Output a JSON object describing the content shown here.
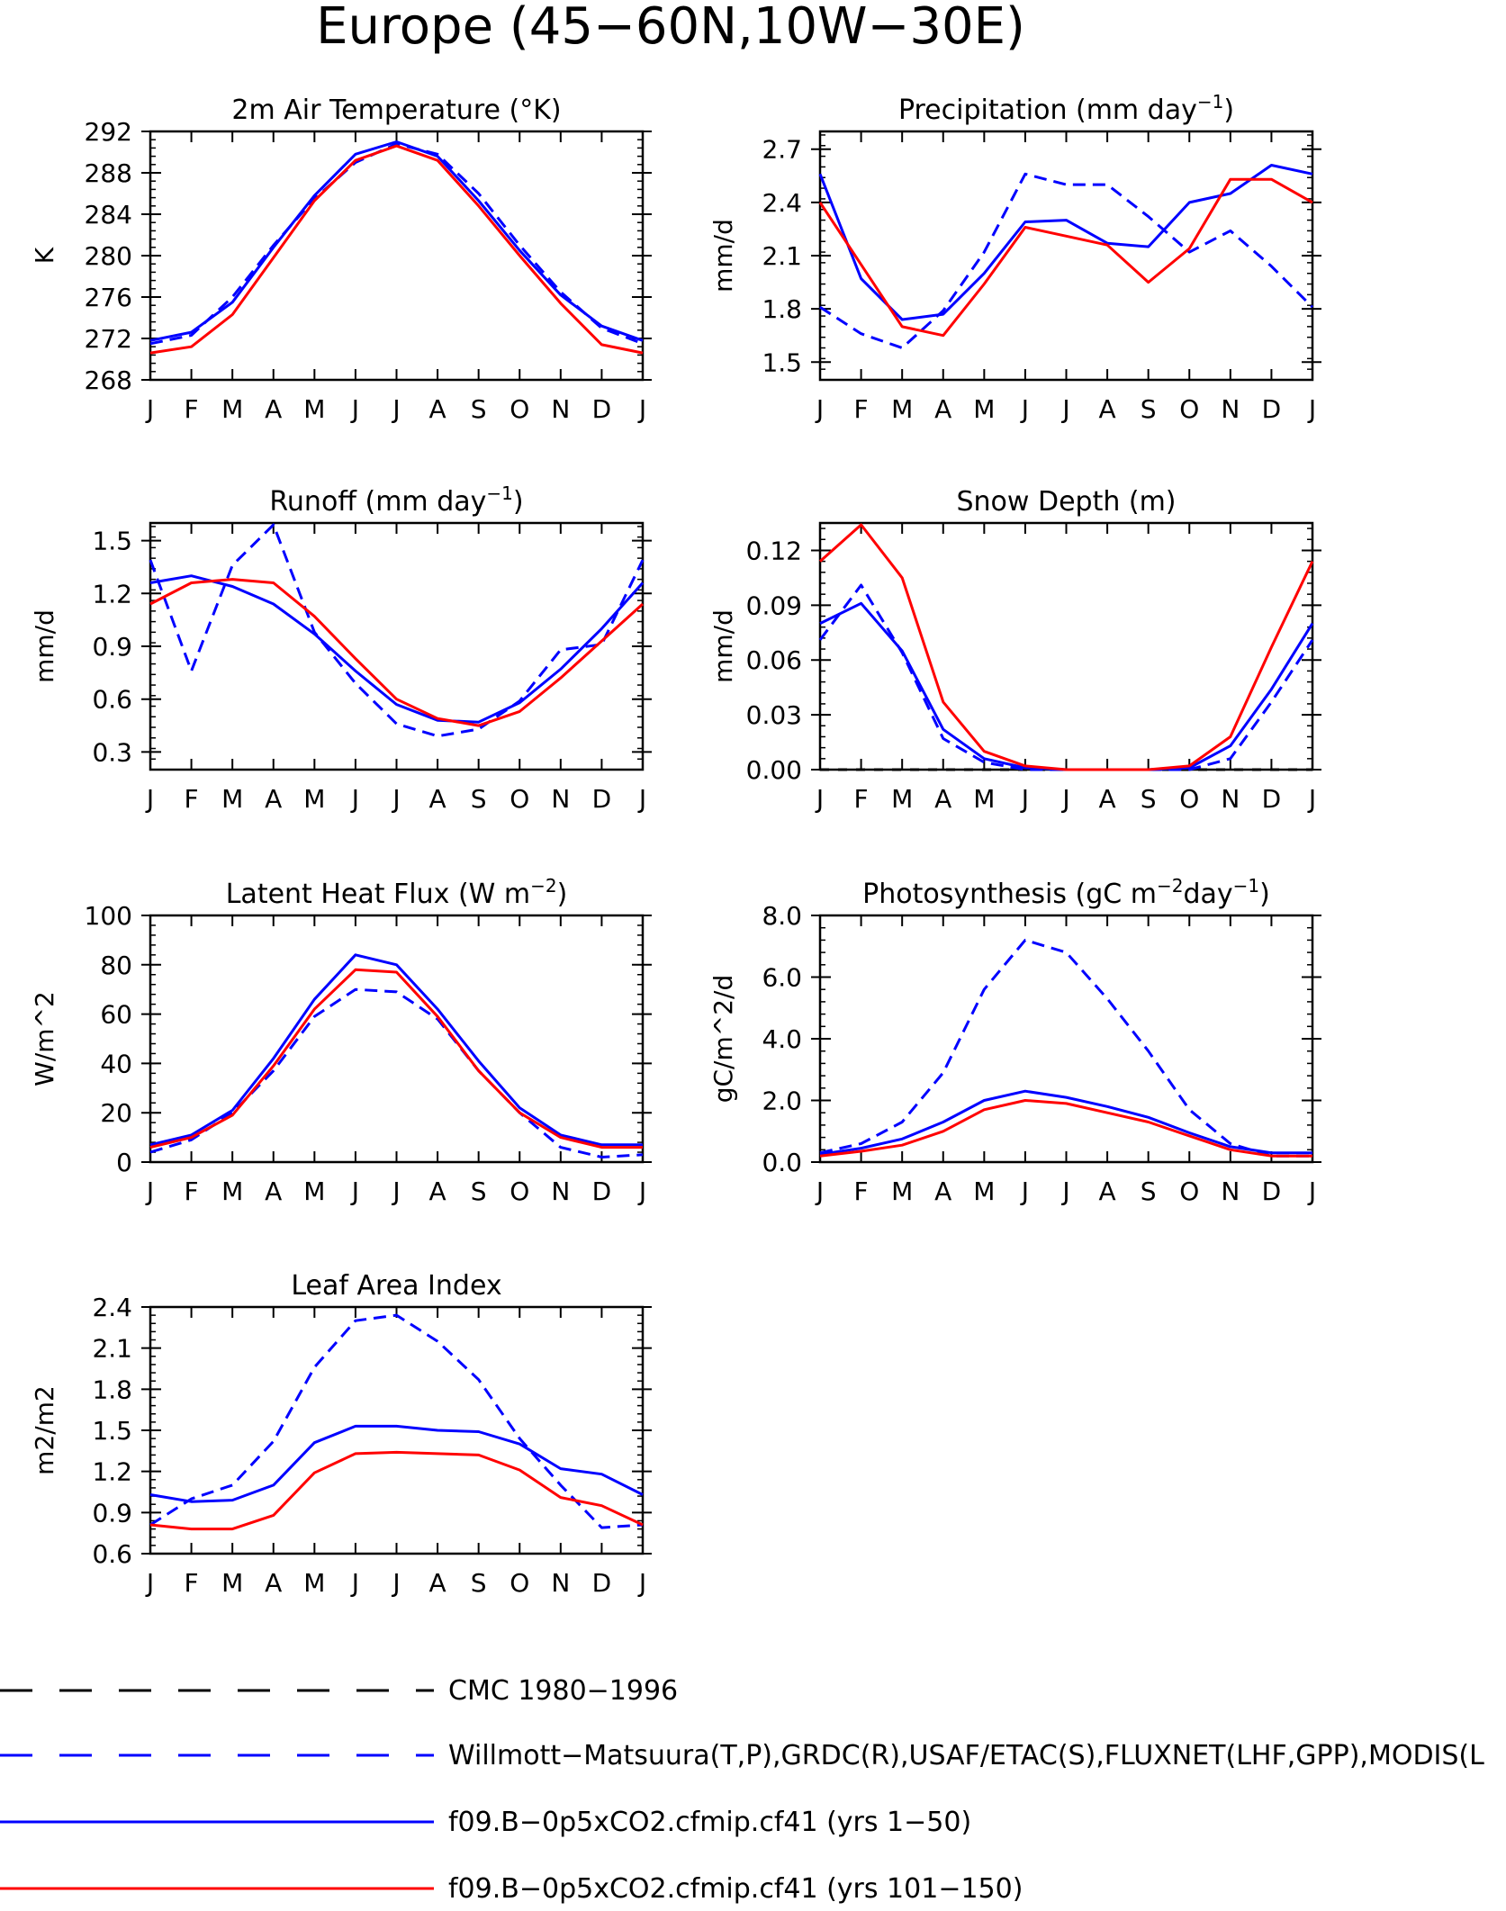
{
  "page": {
    "title": "Europe (45−60N,10W−30E)"
  },
  "months": [
    "J",
    "F",
    "M",
    "A",
    "M",
    "J",
    "J",
    "A",
    "S",
    "O",
    "N",
    "D",
    "J"
  ],
  "chart_data": [
    {
      "type": "line",
      "title_parts": [
        "2m Air Temperature (°K)"
      ],
      "ylabel": "K",
      "ylim": [
        268,
        292
      ],
      "yticks": [
        268,
        272,
        276,
        280,
        284,
        288,
        292
      ],
      "ytick_labels": [
        "268",
        "272",
        "276",
        "280",
        "284",
        "288",
        "292"
      ],
      "x": [
        "J",
        "F",
        "M",
        "A",
        "M",
        "J",
        "J",
        "A",
        "S",
        "O",
        "N",
        "D",
        "J"
      ],
      "series": [
        {
          "key": "obs",
          "values": [
            271.5,
            272.3,
            276.0,
            281.0,
            285.5,
            289.0,
            290.8,
            289.8,
            286.0,
            281.0,
            276.5,
            273.0,
            271.5
          ]
        },
        {
          "key": "model1",
          "values": [
            271.8,
            272.6,
            275.5,
            280.8,
            285.8,
            289.8,
            291.0,
            289.6,
            285.3,
            280.5,
            276.2,
            273.2,
            271.8
          ]
        },
        {
          "key": "model2",
          "values": [
            270.6,
            271.2,
            274.3,
            279.8,
            285.3,
            289.2,
            290.6,
            289.2,
            284.8,
            280.0,
            275.4,
            271.4,
            270.6
          ]
        }
      ]
    },
    {
      "type": "line",
      "title_parts": [
        "Precipitation (mm day",
        "−1",
        ")"
      ],
      "ylabel": "mm/d",
      "ylim": [
        1.4,
        2.8
      ],
      "yticks": [
        1.5,
        1.8,
        2.1,
        2.4,
        2.7
      ],
      "ytick_labels": [
        "1.5",
        "1.8",
        "2.1",
        "2.4",
        "2.7"
      ],
      "x": [
        "J",
        "F",
        "M",
        "A",
        "M",
        "J",
        "J",
        "A",
        "S",
        "O",
        "N",
        "D",
        "J"
      ],
      "series": [
        {
          "key": "obs",
          "values": [
            1.81,
            1.66,
            1.58,
            1.79,
            2.12,
            2.56,
            2.5,
            2.5,
            2.32,
            2.12,
            2.24,
            2.04,
            1.81
          ]
        },
        {
          "key": "model1",
          "values": [
            2.56,
            1.97,
            1.74,
            1.77,
            2.0,
            2.29,
            2.3,
            2.17,
            2.15,
            2.4,
            2.45,
            2.61,
            2.56
          ]
        },
        {
          "key": "model2",
          "values": [
            2.4,
            2.05,
            1.7,
            1.65,
            1.94,
            2.26,
            2.21,
            2.16,
            1.95,
            2.14,
            2.53,
            2.53,
            2.4
          ]
        }
      ]
    },
    {
      "type": "line",
      "title_parts": [
        "Runoff (mm day",
        "−1",
        ")"
      ],
      "ylabel": "mm/d",
      "ylim": [
        0.2,
        1.6
      ],
      "yticks": [
        0.3,
        0.6,
        0.9,
        1.2,
        1.5
      ],
      "ytick_labels": [
        "0.3",
        "0.6",
        "0.9",
        "1.2",
        "1.5"
      ],
      "x": [
        "J",
        "F",
        "M",
        "A",
        "M",
        "J",
        "J",
        "A",
        "S",
        "O",
        "N",
        "D",
        "J"
      ],
      "series": [
        {
          "key": "obs",
          "values": [
            1.39,
            0.76,
            1.36,
            1.59,
            0.98,
            0.69,
            0.46,
            0.39,
            0.43,
            0.59,
            0.88,
            0.91,
            1.39
          ]
        },
        {
          "key": "model1",
          "values": [
            1.26,
            1.3,
            1.24,
            1.14,
            0.97,
            0.76,
            0.57,
            0.48,
            0.47,
            0.58,
            0.77,
            1.0,
            1.26
          ]
        },
        {
          "key": "model2",
          "values": [
            1.14,
            1.26,
            1.28,
            1.26,
            1.07,
            0.83,
            0.6,
            0.49,
            0.45,
            0.53,
            0.72,
            0.93,
            1.14
          ]
        }
      ]
    },
    {
      "type": "line",
      "title_parts": [
        "Snow Depth (m)"
      ],
      "ylabel": "mm/d",
      "ylim": [
        0,
        0.135
      ],
      "yticks": [
        0,
        0.03,
        0.06,
        0.09,
        0.12
      ],
      "ytick_labels": [
        "0.00",
        "0.03",
        "0.06",
        "0.09",
        "0.12"
      ],
      "x": [
        "J",
        "F",
        "M",
        "A",
        "M",
        "J",
        "J",
        "A",
        "S",
        "O",
        "N",
        "D",
        "J"
      ],
      "series": [
        {
          "key": "cmc",
          "values": [
            0,
            0,
            0,
            0,
            0,
            0,
            0,
            0,
            0,
            0,
            0,
            0,
            0
          ]
        },
        {
          "key": "obs",
          "values": [
            0.071,
            0.101,
            0.064,
            0.017,
            0.004,
            0.0,
            0.0,
            0.0,
            0.0,
            0.0,
            0.006,
            0.037,
            0.071
          ]
        },
        {
          "key": "model1",
          "values": [
            0.08,
            0.091,
            0.065,
            0.022,
            0.006,
            0.001,
            0.0,
            0.0,
            0.0,
            0.001,
            0.013,
            0.044,
            0.08
          ]
        },
        {
          "key": "model2",
          "values": [
            0.114,
            0.134,
            0.105,
            0.037,
            0.01,
            0.002,
            0.0,
            0.0,
            0.0,
            0.002,
            0.018,
            0.067,
            0.114
          ]
        }
      ]
    },
    {
      "type": "line",
      "title_parts": [
        "Latent Heat Flux (W m",
        "−2",
        ")"
      ],
      "ylabel": "W/m^2",
      "ylim": [
        0,
        100
      ],
      "yticks": [
        0,
        20,
        40,
        60,
        80,
        100
      ],
      "ytick_labels": [
        "0",
        "20",
        "40",
        "60",
        "80",
        "100"
      ],
      "x": [
        "J",
        "F",
        "M",
        "A",
        "M",
        "J",
        "J",
        "A",
        "S",
        "O",
        "N",
        "D",
        "J"
      ],
      "series": [
        {
          "key": "obs",
          "values": [
            4,
            9,
            20,
            37,
            59,
            70,
            69,
            58,
            37,
            20,
            6,
            2,
            3
          ]
        },
        {
          "key": "model1",
          "values": [
            7,
            11,
            21,
            42,
            66,
            84,
            80,
            62,
            41,
            22,
            11,
            7,
            7
          ]
        },
        {
          "key": "model2",
          "values": [
            6,
            10,
            19,
            39,
            62,
            78,
            77,
            59,
            37,
            20,
            10,
            6,
            6
          ]
        }
      ]
    },
    {
      "type": "line",
      "title_parts": [
        "Photosynthesis (gC m",
        "−2",
        "day",
        "−1",
        ")"
      ],
      "ylabel": "gC/m^2/d",
      "ylim": [
        0,
        8
      ],
      "yticks": [
        0,
        2,
        4,
        6,
        8
      ],
      "ytick_labels": [
        "0.0",
        "2.0",
        "4.0",
        "6.0",
        "8.0"
      ],
      "x": [
        "J",
        "F",
        "M",
        "A",
        "M",
        "J",
        "J",
        "A",
        "S",
        "O",
        "N",
        "D",
        "J"
      ],
      "series": [
        {
          "key": "obs",
          "values": [
            0.3,
            0.6,
            1.3,
            2.9,
            5.6,
            7.2,
            6.8,
            5.3,
            3.6,
            1.7,
            0.6,
            0.2,
            0.2
          ]
        },
        {
          "key": "model1",
          "values": [
            0.25,
            0.45,
            0.75,
            1.3,
            2.0,
            2.3,
            2.1,
            1.8,
            1.45,
            0.95,
            0.5,
            0.3,
            0.3
          ]
        },
        {
          "key": "model2",
          "values": [
            0.2,
            0.35,
            0.55,
            1.0,
            1.7,
            2.0,
            1.9,
            1.6,
            1.3,
            0.85,
            0.4,
            0.2,
            0.2
          ]
        }
      ]
    },
    {
      "type": "line",
      "title_parts": [
        "Leaf Area Index"
      ],
      "ylabel": "m2/m2",
      "ylim": [
        0.6,
        2.4
      ],
      "yticks": [
        0.6,
        0.9,
        1.2,
        1.5,
        1.8,
        2.1,
        2.4
      ],
      "ytick_labels": [
        "0.6",
        "0.9",
        "1.2",
        "1.5",
        "1.8",
        "2.1",
        "2.4"
      ],
      "x": [
        "J",
        "F",
        "M",
        "A",
        "M",
        "J",
        "J",
        "A",
        "S",
        "O",
        "N",
        "D",
        "J"
      ],
      "series": [
        {
          "key": "obs",
          "values": [
            0.81,
            1.0,
            1.1,
            1.42,
            1.96,
            2.3,
            2.34,
            2.15,
            1.87,
            1.44,
            1.1,
            0.79,
            0.81
          ]
        },
        {
          "key": "model1",
          "values": [
            1.03,
            0.98,
            0.99,
            1.1,
            1.41,
            1.53,
            1.53,
            1.5,
            1.49,
            1.4,
            1.22,
            1.18,
            1.03
          ]
        },
        {
          "key": "model2",
          "values": [
            0.81,
            0.78,
            0.78,
            0.88,
            1.19,
            1.33,
            1.34,
            1.33,
            1.32,
            1.21,
            1.01,
            0.95,
            0.81
          ]
        }
      ]
    }
  ],
  "legend": [
    {
      "key": "cmc",
      "label": "CMC 1980−1996",
      "color": "#000000",
      "dashed": true
    },
    {
      "key": "obs",
      "label": "Willmott−Matsuura(T,P),GRDC(R),USAF/ETAC(S),FLUXNET(LHF,GPP),MODIS(L",
      "color": "#0000ff",
      "dashed": true
    },
    {
      "key": "model1",
      "label": "f09.B−0p5xCO2.cfmip.cf41 (yrs 1−50)",
      "color": "#0000ff",
      "dashed": false
    },
    {
      "key": "model2",
      "label": "f09.B−0p5xCO2.cfmip.cf41 (yrs 101−150)",
      "color": "#ff0000",
      "dashed": false
    }
  ],
  "colors": {
    "obs": "#0000ff",
    "model1": "#0000ff",
    "model2": "#ff0000",
    "cmc": "#000000",
    "axes": "#000000"
  }
}
